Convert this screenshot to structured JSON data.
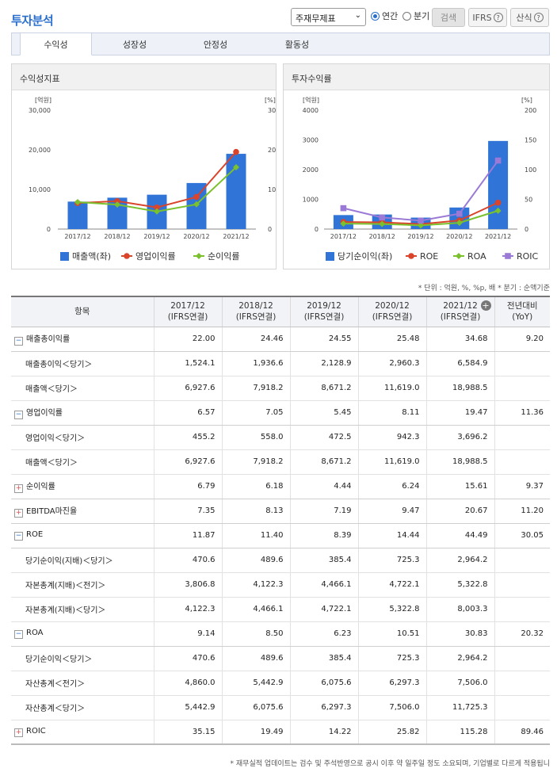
{
  "header": {
    "title": "투자분석",
    "select_value": "주재무제표",
    "radio_annual": "연간",
    "radio_quarter": "분기",
    "search_label": "검색",
    "ifrs_label": "IFRS",
    "formula_label": "산식"
  },
  "tabs": [
    "수익성",
    "성장성",
    "안정성",
    "활동성"
  ],
  "panels": {
    "left_title": "수익성지표",
    "right_title": "투자수익률"
  },
  "chart_data": [
    {
      "type": "bar",
      "title": "수익성지표",
      "categories": [
        "2017/12",
        "2018/12",
        "2019/12",
        "2020/12",
        "2021/12"
      ],
      "left_axis": {
        "unit": "[억원]",
        "ticks": [
          "30,000",
          "20,000",
          "10,000",
          "0"
        ],
        "range": [
          0,
          30000
        ]
      },
      "right_axis": {
        "unit": "[%]",
        "ticks": [
          "30",
          "20",
          "10",
          "0"
        ],
        "range": [
          0,
          30
        ]
      },
      "bar_series": {
        "name": "매출액(좌)",
        "values": [
          6927.6,
          7918.2,
          8671.2,
          11619.0,
          18988.5
        ],
        "color": "#2f74d6"
      },
      "line_series": [
        {
          "name": "영업이익률",
          "values": [
            6.57,
            7.05,
            5.45,
            8.11,
            19.47
          ],
          "color": "#d9442b",
          "marker": "circle"
        },
        {
          "name": "순이익률",
          "values": [
            6.79,
            6.18,
            4.44,
            6.24,
            15.61
          ],
          "color": "#7ac12d",
          "marker": "diamond"
        }
      ]
    },
    {
      "type": "bar",
      "title": "투자수익률",
      "categories": [
        "2017/12",
        "2018/12",
        "2019/12",
        "2020/12",
        "2021/12"
      ],
      "left_axis": {
        "unit": "[억원]",
        "ticks": [
          "4000",
          "3000",
          "2000",
          "1000",
          "0"
        ],
        "range": [
          0,
          4000
        ]
      },
      "right_axis": {
        "unit": "[%]",
        "ticks": [
          "200",
          "150",
          "100",
          "50",
          "0"
        ],
        "range": [
          0,
          200
        ]
      },
      "bar_series": {
        "name": "당기순이익(좌)",
        "values": [
          470.6,
          489.6,
          385.4,
          725.3,
          2964.2
        ],
        "color": "#2f74d6"
      },
      "line_series": [
        {
          "name": "ROE",
          "values": [
            11.87,
            11.4,
            8.39,
            14.44,
            44.49
          ],
          "color": "#d9442b",
          "marker": "circle"
        },
        {
          "name": "ROA",
          "values": [
            9.14,
            8.5,
            6.23,
            10.51,
            30.83
          ],
          "color": "#7ac12d",
          "marker": "diamond"
        },
        {
          "name": "ROIC",
          "values": [
            35.15,
            19.49,
            14.22,
            25.82,
            115.28
          ],
          "color": "#9a7ad6",
          "marker": "square"
        }
      ]
    }
  ],
  "unit_note": "* 단위 : 억원, %, %p, 배   * 분기 : 순액기준",
  "table": {
    "headers": [
      {
        "l1": "항목",
        "l2": ""
      },
      {
        "l1": "2017/12",
        "l2": "(IFRS연결)"
      },
      {
        "l1": "2018/12",
        "l2": "(IFRS연결)"
      },
      {
        "l1": "2019/12",
        "l2": "(IFRS연결)"
      },
      {
        "l1": "2020/12",
        "l2": "(IFRS연결)"
      },
      {
        "l1": "2021/12",
        "l2": "(IFRS연결)"
      },
      {
        "l1": "전년대비",
        "l2": "(YoY)"
      }
    ],
    "rows": [
      {
        "kind": "grp",
        "toggle": "−",
        "label": "매출총이익률",
        "values": [
          "22.00",
          "24.46",
          "24.55",
          "25.48",
          "34.68",
          "9.20"
        ]
      },
      {
        "kind": "sub",
        "label": "매출총이익＜당기＞",
        "values": [
          "1,524.1",
          "1,936.6",
          "2,128.9",
          "2,960.3",
          "6,584.9",
          ""
        ]
      },
      {
        "kind": "sub",
        "label": "매출액＜당기＞",
        "values": [
          "6,927.6",
          "7,918.2",
          "8,671.2",
          "11,619.0",
          "18,988.5",
          ""
        ]
      },
      {
        "kind": "grp",
        "toggle": "−",
        "label": "영업이익률",
        "values": [
          "6.57",
          "7.05",
          "5.45",
          "8.11",
          "19.47",
          "11.36"
        ]
      },
      {
        "kind": "sub",
        "label": "영업이익＜당기＞",
        "values": [
          "455.2",
          "558.0",
          "472.5",
          "942.3",
          "3,696.2",
          ""
        ]
      },
      {
        "kind": "sub",
        "label": "매출액＜당기＞",
        "values": [
          "6,927.6",
          "7,918.2",
          "8,671.2",
          "11,619.0",
          "18,988.5",
          ""
        ]
      },
      {
        "kind": "grp",
        "toggle": "+",
        "label": "순이익률",
        "values": [
          "6.79",
          "6.18",
          "4.44",
          "6.24",
          "15.61",
          "9.37"
        ]
      },
      {
        "kind": "grp",
        "toggle": "+",
        "label": "EBITDA마진율",
        "values": [
          "7.35",
          "8.13",
          "7.19",
          "9.47",
          "20.67",
          "11.20"
        ]
      },
      {
        "kind": "grp",
        "toggle": "−",
        "label": "ROE",
        "values": [
          "11.87",
          "11.40",
          "8.39",
          "14.44",
          "44.49",
          "30.05"
        ]
      },
      {
        "kind": "sub",
        "label": "당기순이익(지배)＜당기＞",
        "values": [
          "470.6",
          "489.6",
          "385.4",
          "725.3",
          "2,964.2",
          ""
        ]
      },
      {
        "kind": "sub",
        "label": "자본총계(지배)＜전기＞",
        "values": [
          "3,806.8",
          "4,122.3",
          "4,466.1",
          "4,722.1",
          "5,322.8",
          ""
        ]
      },
      {
        "kind": "sub",
        "label": "자본총계(지배)＜당기＞",
        "values": [
          "4,122.3",
          "4,466.1",
          "4,722.1",
          "5,322.8",
          "8,003.3",
          ""
        ]
      },
      {
        "kind": "grp",
        "toggle": "−",
        "label": "ROA",
        "values": [
          "9.14",
          "8.50",
          "6.23",
          "10.51",
          "30.83",
          "20.32"
        ]
      },
      {
        "kind": "sub",
        "label": "당기순이익＜당기＞",
        "values": [
          "470.6",
          "489.6",
          "385.4",
          "725.3",
          "2,964.2",
          ""
        ]
      },
      {
        "kind": "sub",
        "label": "자산총계＜전기＞",
        "values": [
          "4,860.0",
          "5,442.9",
          "6,075.6",
          "6,297.3",
          "7,506.0",
          ""
        ]
      },
      {
        "kind": "sub",
        "label": "자산총계＜당기＞",
        "values": [
          "5,442.9",
          "6,075.6",
          "6,297.3",
          "7,506.0",
          "11,725.3",
          ""
        ]
      },
      {
        "kind": "grp",
        "toggle": "+",
        "label": "ROIC",
        "values": [
          "35.15",
          "19.49",
          "14.22",
          "25.82",
          "115.28",
          "89.46"
        ]
      }
    ]
  },
  "footer_note": "* 재무실적 업데이트는 검수 및 주석반영으로 공시 이후 약 일주일 정도 소요되며, 기업별로 다르게 적용됩니"
}
